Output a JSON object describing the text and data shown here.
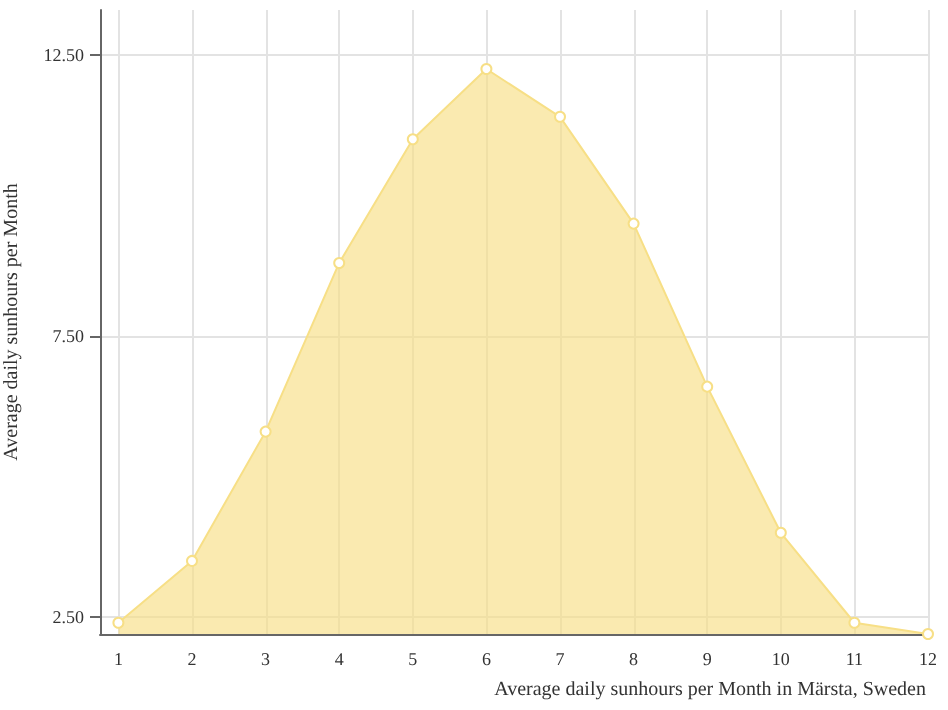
{
  "chart_data": {
    "type": "area",
    "xlabel": "Average daily sunhours per Month in Märsta, Sweden",
    "ylabel": "Average daily sunhours per Month",
    "x": [
      1,
      2,
      3,
      4,
      5,
      6,
      7,
      8,
      9,
      10,
      11,
      12
    ],
    "series": [
      {
        "color": "#f7df86",
        "values": [
          2.4,
          3.5,
          5.8,
          8.8,
          11.0,
          12.25,
          11.4,
          9.5,
          6.6,
          4.0,
          2.4,
          2.2
        ]
      }
    ],
    "xlim": [
      0.75,
      12
    ],
    "xticks": [
      1,
      2,
      3,
      4,
      5,
      6,
      7,
      8,
      9,
      10,
      11,
      12
    ],
    "ylim": [
      2.2,
      13.3
    ],
    "yticks": [
      {
        "value": 2.5,
        "label": "2.50"
      },
      {
        "value": 7.5,
        "label": "7.50"
      },
      {
        "value": 12.5,
        "label": "12.50"
      }
    ],
    "grid": true,
    "marker": "circle",
    "line_style": "solid"
  }
}
